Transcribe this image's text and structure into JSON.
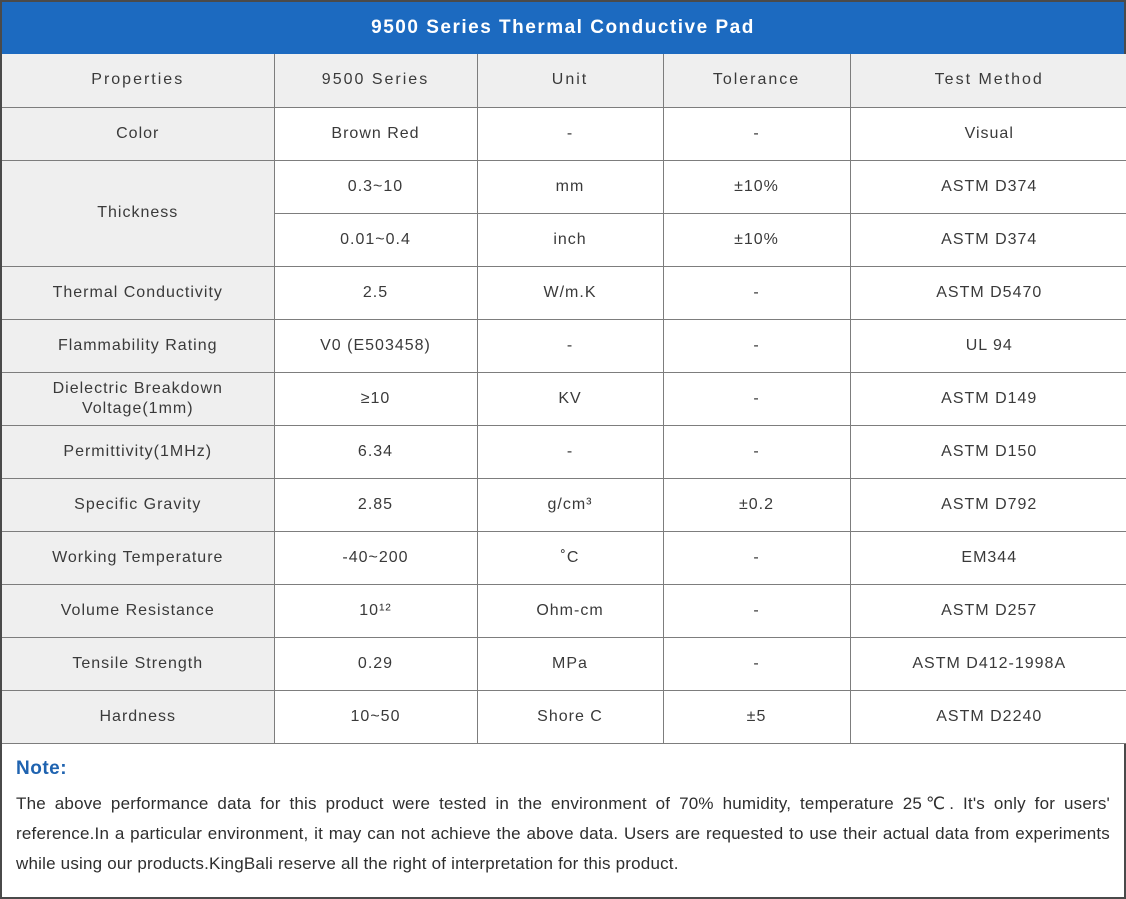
{
  "title": "9500 Series Thermal Conductive Pad",
  "colors": {
    "title_bar_blue": "#1c6ac0",
    "note_label_blue": "#1f63b0",
    "header_row_gray": "#efefef",
    "grid_border_gray": "#7d7d7d",
    "outer_border_gray": "#4a4a4a",
    "text_dark_gray": "#3a3a3a"
  },
  "table": {
    "headers": [
      "Properties",
      "9500 Series",
      "Unit",
      "Tolerance",
      "Test Method"
    ],
    "rows": [
      {
        "property": "Color",
        "value": "Brown Red",
        "unit": "-",
        "tolerance": "-",
        "method": "Visual"
      },
      {
        "property": "Thickness",
        "value": "0.3~10",
        "unit": "mm",
        "tolerance": "±10%",
        "method": "ASTM D374"
      },
      {
        "property": "Thickness",
        "value": "0.01~0.4",
        "unit": "inch",
        "tolerance": "±10%",
        "method": "ASTM D374"
      },
      {
        "property": "Thermal Conductivity",
        "value": "2.5",
        "unit": "W/m.K",
        "tolerance": "-",
        "method": "ASTM D5470"
      },
      {
        "property": "Flammability Rating",
        "value": "V0 (E503458)",
        "unit": "-",
        "tolerance": "-",
        "method": "UL 94"
      },
      {
        "property": "Dielectric Breakdown Voltage(1mm)",
        "value": "≥10",
        "unit": "KV",
        "tolerance": "-",
        "method": "ASTM D149"
      },
      {
        "property": "Permittivity(1MHz)",
        "value": "6.34",
        "unit": "-",
        "tolerance": "-",
        "method": "ASTM D150"
      },
      {
        "property": "Specific Gravity",
        "value": "2.85",
        "unit": "g/cm³",
        "tolerance": "±0.2",
        "method": "ASTM D792"
      },
      {
        "property": "Working Temperature",
        "value": "-40~200",
        "unit": "˚C",
        "tolerance": "-",
        "method": "EM344"
      },
      {
        "property": "Volume Resistance",
        "value": "10¹²",
        "unit": "Ohm-cm",
        "tolerance": "-",
        "method": "ASTM D257"
      },
      {
        "property": "Tensile Strength",
        "value": "0.29",
        "unit": "MPa",
        "tolerance": "-",
        "method": "ASTM D412-1998A"
      },
      {
        "property": "Hardness",
        "value": "10~50",
        "unit": "Shore C",
        "tolerance": "±5",
        "method": "ASTM D2240"
      }
    ]
  },
  "note": {
    "label": "Note:",
    "text": "The above performance data for this product were tested in the environment of 70% humidity, temperature 25℃. It's only for users' reference.In a particular environment, it may can not achieve the above data. Users are requested to use their actual data from experiments while using our products.KingBali reserve all the right of interpretation for this product."
  }
}
